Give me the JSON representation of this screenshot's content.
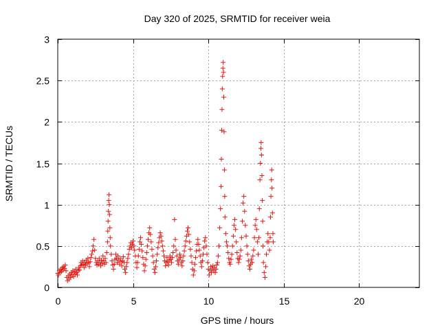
{
  "chart_data": {
    "type": "scatter",
    "title": "Day 320 of 2025, SRMTID for receiver weia",
    "xlabel": "GPS time / hours",
    "ylabel": "SRMTID / TECUs",
    "xlim": [
      0,
      24
    ],
    "ylim": [
      0,
      3
    ],
    "xticks": [
      0,
      5,
      10,
      15,
      20
    ],
    "xtick_labels": [
      "0",
      "5",
      "10",
      "15",
      "20"
    ],
    "yticks": [
      0,
      0.5,
      1,
      1.5,
      2,
      2.5,
      3
    ],
    "ytick_labels": [
      "0",
      "0.5",
      "1",
      "1.5",
      "2",
      "2.5",
      "3"
    ],
    "grid": true,
    "marker": "+",
    "color": "#e8130e",
    "series": [
      {
        "name": "SRMTID",
        "points": [
          [
            0.0,
            0.17
          ],
          [
            0.05,
            0.15
          ],
          [
            0.1,
            0.2
          ],
          [
            0.15,
            0.18
          ],
          [
            0.2,
            0.22
          ],
          [
            0.25,
            0.19
          ],
          [
            0.3,
            0.24
          ],
          [
            0.35,
            0.21
          ],
          [
            0.4,
            0.25
          ],
          [
            0.45,
            0.23
          ],
          [
            0.5,
            0.27
          ],
          [
            0.55,
            0.2
          ],
          [
            0.6,
            0.12
          ],
          [
            0.65,
            0.08
          ],
          [
            0.7,
            0.14
          ],
          [
            0.75,
            0.1
          ],
          [
            0.8,
            0.16
          ],
          [
            0.85,
            0.12
          ],
          [
            0.9,
            0.18
          ],
          [
            0.95,
            0.15
          ],
          [
            1.0,
            0.2
          ],
          [
            1.05,
            0.13
          ],
          [
            1.1,
            0.19
          ],
          [
            1.15,
            0.16
          ],
          [
            1.2,
            0.22
          ],
          [
            1.25,
            0.18
          ],
          [
            1.3,
            0.15
          ],
          [
            1.35,
            0.2
          ],
          [
            1.4,
            0.24
          ],
          [
            1.45,
            0.21
          ],
          [
            1.5,
            0.26
          ],
          [
            1.55,
            0.3
          ],
          [
            1.6,
            0.27
          ],
          [
            1.65,
            0.32
          ],
          [
            1.7,
            0.28
          ],
          [
            1.75,
            0.24
          ],
          [
            1.8,
            0.3
          ],
          [
            1.85,
            0.27
          ],
          [
            1.9,
            0.33
          ],
          [
            1.95,
            0.29
          ],
          [
            2.0,
            0.35
          ],
          [
            2.05,
            0.3
          ],
          [
            2.1,
            0.25
          ],
          [
            2.15,
            0.31
          ],
          [
            2.2,
            0.36
          ],
          [
            2.25,
            0.4
          ],
          [
            2.3,
            0.44
          ],
          [
            2.35,
            0.5
          ],
          [
            2.4,
            0.58
          ],
          [
            2.45,
            0.45
          ],
          [
            2.5,
            0.35
          ],
          [
            2.55,
            0.3
          ],
          [
            2.6,
            0.27
          ],
          [
            2.65,
            0.32
          ],
          [
            2.7,
            0.28
          ],
          [
            2.75,
            0.35
          ],
          [
            2.8,
            0.3
          ],
          [
            2.85,
            0.26
          ],
          [
            2.9,
            0.33
          ],
          [
            2.95,
            0.29
          ],
          [
            3.0,
            0.38
          ],
          [
            3.05,
            0.32
          ],
          [
            3.1,
            0.28
          ],
          [
            3.15,
            0.35
          ],
          [
            3.2,
            0.3
          ],
          [
            3.25,
            0.42
          ],
          [
            3.3,
            0.55
          ],
          [
            3.32,
            0.68
          ],
          [
            3.34,
            0.8
          ],
          [
            3.36,
            0.92
          ],
          [
            3.38,
            1.05
          ],
          [
            3.4,
            1.12
          ],
          [
            3.42,
            1.0
          ],
          [
            3.44,
            0.88
          ],
          [
            3.46,
            0.72
          ],
          [
            3.48,
            0.6
          ],
          [
            3.5,
            0.5
          ],
          [
            3.55,
            0.4
          ],
          [
            3.6,
            0.32
          ],
          [
            3.65,
            0.27
          ],
          [
            3.7,
            0.22
          ],
          [
            3.75,
            0.28
          ],
          [
            3.8,
            0.34
          ],
          [
            3.85,
            0.4
          ],
          [
            3.9,
            0.35
          ],
          [
            3.95,
            0.3
          ],
          [
            4.0,
            0.38
          ],
          [
            4.05,
            0.33
          ],
          [
            4.1,
            0.28
          ],
          [
            4.15,
            0.35
          ],
          [
            4.2,
            0.31
          ],
          [
            4.25,
            0.26
          ],
          [
            4.3,
            0.32
          ],
          [
            4.35,
            0.37
          ],
          [
            4.4,
            0.3
          ],
          [
            4.45,
            0.22
          ],
          [
            4.5,
            0.18
          ],
          [
            4.55,
            0.25
          ],
          [
            4.6,
            0.3
          ],
          [
            4.65,
            0.35
          ],
          [
            4.7,
            0.4
          ],
          [
            4.75,
            0.46
          ],
          [
            4.8,
            0.5
          ],
          [
            4.85,
            0.54
          ],
          [
            4.9,
            0.48
          ],
          [
            4.95,
            0.52
          ],
          [
            5.0,
            0.56
          ],
          [
            5.05,
            0.5
          ],
          [
            5.1,
            0.45
          ],
          [
            5.15,
            0.38
          ],
          [
            5.2,
            0.3
          ],
          [
            5.25,
            0.24
          ],
          [
            5.3,
            0.3
          ],
          [
            5.35,
            0.38
          ],
          [
            5.4,
            0.46
          ],
          [
            5.45,
            0.55
          ],
          [
            5.5,
            0.6
          ],
          [
            5.55,
            0.52
          ],
          [
            5.6,
            0.44
          ],
          [
            5.65,
            0.36
          ],
          [
            5.7,
            0.28
          ],
          [
            5.75,
            0.2
          ],
          [
            5.8,
            0.26
          ],
          [
            5.85,
            0.34
          ],
          [
            5.9,
            0.42
          ],
          [
            5.95,
            0.5
          ],
          [
            6.0,
            0.58
          ],
          [
            6.05,
            0.66
          ],
          [
            6.1,
            0.72
          ],
          [
            6.15,
            0.64
          ],
          [
            6.2,
            0.55
          ],
          [
            6.25,
            0.46
          ],
          [
            6.3,
            0.38
          ],
          [
            6.35,
            0.3
          ],
          [
            6.4,
            0.22
          ],
          [
            6.45,
            0.18
          ],
          [
            6.5,
            0.25
          ],
          [
            6.55,
            0.32
          ],
          [
            6.6,
            0.4
          ],
          [
            6.65,
            0.48
          ],
          [
            6.7,
            0.54
          ],
          [
            6.75,
            0.6
          ],
          [
            6.8,
            0.66
          ],
          [
            6.85,
            0.62
          ],
          [
            6.9,
            0.56
          ],
          [
            6.95,
            0.5
          ],
          [
            7.0,
            0.44
          ],
          [
            7.05,
            0.38
          ],
          [
            7.1,
            0.32
          ],
          [
            7.15,
            0.26
          ],
          [
            7.2,
            0.3
          ],
          [
            7.25,
            0.36
          ],
          [
            7.3,
            0.31
          ],
          [
            7.35,
            0.27
          ],
          [
            7.4,
            0.33
          ],
          [
            7.45,
            0.38
          ],
          [
            7.5,
            0.34
          ],
          [
            7.55,
            0.3
          ],
          [
            7.6,
            0.36
          ],
          [
            7.65,
            0.42
          ],
          [
            7.7,
            0.5
          ],
          [
            7.75,
            0.82
          ],
          [
            7.8,
            0.58
          ],
          [
            7.85,
            0.45
          ],
          [
            7.9,
            0.38
          ],
          [
            7.95,
            0.32
          ],
          [
            8.0,
            0.28
          ],
          [
            8.05,
            0.34
          ],
          [
            8.1,
            0.4
          ],
          [
            8.15,
            0.36
          ],
          [
            8.2,
            0.3
          ],
          [
            8.25,
            0.26
          ],
          [
            8.3,
            0.32
          ],
          [
            8.35,
            0.38
          ],
          [
            8.4,
            0.44
          ],
          [
            8.45,
            0.5
          ],
          [
            8.5,
            0.56
          ],
          [
            8.55,
            0.62
          ],
          [
            8.6,
            0.68
          ],
          [
            8.65,
            0.72
          ],
          [
            8.7,
            0.64
          ],
          [
            8.75,
            0.55
          ],
          [
            8.8,
            0.46
          ],
          [
            8.85,
            0.38
          ],
          [
            8.9,
            0.3
          ],
          [
            8.95,
            0.22
          ],
          [
            9.0,
            0.15
          ],
          [
            9.05,
            0.2
          ],
          [
            9.1,
            0.28
          ],
          [
            9.15,
            0.36
          ],
          [
            9.2,
            0.44
          ],
          [
            9.25,
            0.52
          ],
          [
            9.3,
            0.58
          ],
          [
            9.35,
            0.52
          ],
          [
            9.4,
            0.45
          ],
          [
            9.45,
            0.38
          ],
          [
            9.5,
            0.3
          ],
          [
            9.55,
            0.25
          ],
          [
            9.6,
            0.32
          ],
          [
            9.65,
            0.4
          ],
          [
            9.7,
            0.48
          ],
          [
            9.75,
            0.56
          ],
          [
            9.8,
            0.6
          ],
          [
            9.85,
            0.5
          ],
          [
            9.9,
            0.4
          ],
          [
            9.95,
            0.3
          ],
          [
            10.0,
            0.22
          ],
          [
            10.05,
            0.15
          ],
          [
            10.1,
            0.2
          ],
          [
            10.15,
            0.25
          ],
          [
            10.2,
            0.18
          ],
          [
            10.25,
            0.22
          ],
          [
            10.3,
            0.26
          ],
          [
            10.35,
            0.2
          ],
          [
            10.4,
            0.24
          ],
          [
            10.45,
            0.18
          ],
          [
            10.5,
            0.22
          ],
          [
            10.55,
            0.27
          ],
          [
            10.6,
            0.3
          ],
          [
            10.65,
            0.38
          ],
          [
            10.7,
            0.5
          ],
          [
            10.75,
            0.72
          ],
          [
            10.8,
            0.95
          ],
          [
            10.84,
            1.22
          ],
          [
            10.86,
            1.55
          ],
          [
            10.88,
            1.9
          ],
          [
            10.9,
            2.15
          ],
          [
            10.92,
            2.4
          ],
          [
            10.94,
            2.55
          ],
          [
            10.96,
            2.65
          ],
          [
            10.98,
            2.72
          ],
          [
            11.0,
            2.6
          ],
          [
            11.02,
            2.3
          ],
          [
            11.04,
            1.88
          ],
          [
            11.06,
            1.42
          ],
          [
            11.08,
            1.1
          ],
          [
            11.1,
            0.85
          ],
          [
            11.15,
            0.65
          ],
          [
            11.2,
            0.55
          ],
          [
            11.25,
            0.5
          ],
          [
            11.3,
            0.42
          ],
          [
            11.35,
            0.35
          ],
          [
            11.4,
            0.3
          ],
          [
            11.45,
            0.28
          ],
          [
            11.5,
            0.34
          ],
          [
            11.55,
            0.4
          ],
          [
            11.6,
            0.5
          ],
          [
            11.65,
            0.62
          ],
          [
            11.7,
            0.75
          ],
          [
            11.75,
            0.82
          ],
          [
            11.8,
            0.7
          ],
          [
            11.85,
            0.55
          ],
          [
            11.9,
            0.42
          ],
          [
            11.95,
            0.35
          ],
          [
            12.0,
            0.3
          ],
          [
            12.05,
            0.34
          ],
          [
            12.1,
            0.38
          ],
          [
            12.15,
            0.45
          ],
          [
            12.2,
            0.6
          ],
          [
            12.25,
            0.8
          ],
          [
            12.3,
            1.02
          ],
          [
            12.35,
            1.1
          ],
          [
            12.4,
            0.92
          ],
          [
            12.45,
            0.75
          ],
          [
            12.5,
            0.62
          ],
          [
            12.55,
            0.5
          ],
          [
            12.6,
            0.4
          ],
          [
            12.65,
            0.32
          ],
          [
            12.7,
            0.26
          ],
          [
            12.75,
            0.22
          ],
          [
            12.8,
            0.28
          ],
          [
            12.85,
            0.34
          ],
          [
            12.9,
            0.3
          ],
          [
            12.95,
            0.38
          ],
          [
            13.0,
            0.45
          ],
          [
            13.05,
            0.6
          ],
          [
            13.1,
            0.75
          ],
          [
            13.15,
            0.82
          ],
          [
            13.2,
            0.7
          ],
          [
            13.25,
            0.55
          ],
          [
            13.3,
            0.4
          ],
          [
            13.35,
            0.6
          ],
          [
            13.38,
            0.95
          ],
          [
            13.42,
            1.3
          ],
          [
            13.45,
            1.5
          ],
          [
            13.48,
            1.68
          ],
          [
            13.5,
            1.75
          ],
          [
            13.52,
            1.6
          ],
          [
            13.55,
            1.35
          ],
          [
            13.58,
            1.05
          ],
          [
            13.6,
            0.8
          ],
          [
            13.62,
            0.5
          ],
          [
            13.65,
            0.3
          ],
          [
            13.7,
            0.18
          ],
          [
            13.75,
            0.12
          ],
          [
            13.8,
            0.25
          ],
          [
            13.85,
            0.4
          ],
          [
            13.9,
            0.55
          ],
          [
            13.95,
            0.65
          ],
          [
            14.0,
            0.55
          ],
          [
            14.05,
            0.45
          ],
          [
            14.1,
            0.6
          ],
          [
            14.12,
            0.85
          ],
          [
            14.15,
            1.1
          ],
          [
            14.18,
            1.3
          ],
          [
            14.2,
            1.42
          ],
          [
            14.22,
            1.2
          ],
          [
            14.25,
            0.9
          ],
          [
            14.28,
            0.65
          ],
          [
            14.3,
            0.55
          ]
        ]
      }
    ]
  }
}
